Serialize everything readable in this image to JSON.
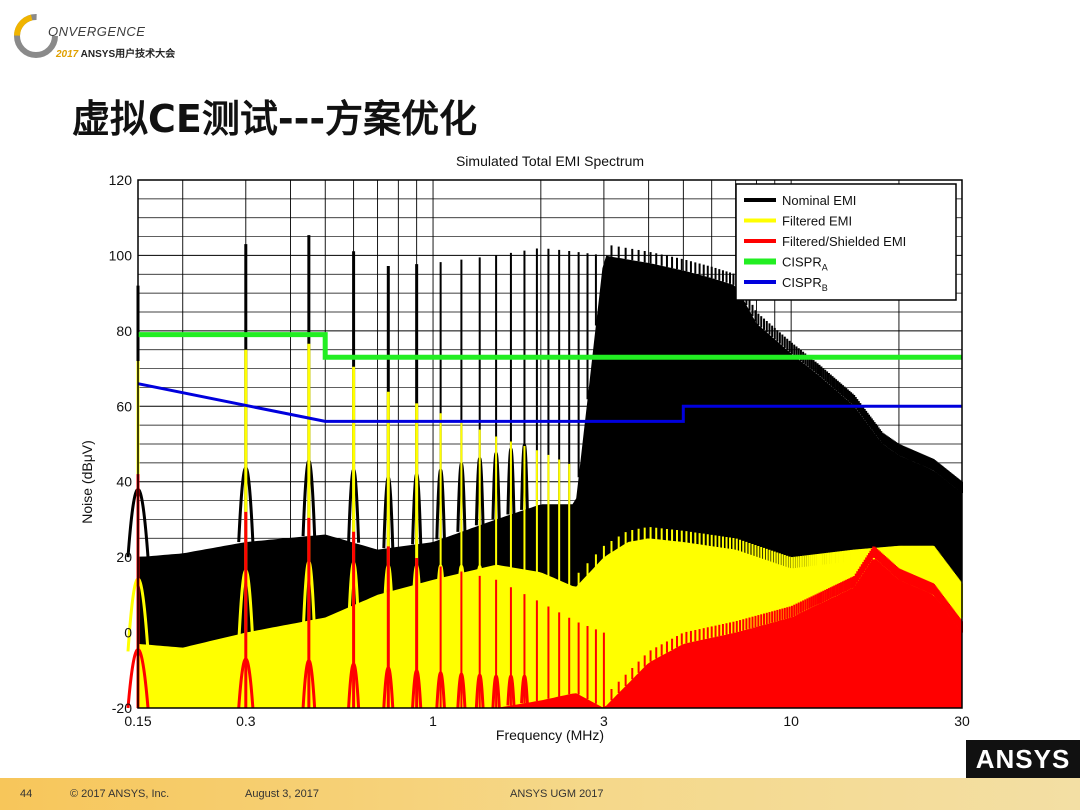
{
  "logo": {
    "text": "ONVERGENCE",
    "year": "2017",
    "subtitle": "ANSYS用户技术大会",
    "icon": "convergence-ring-icon"
  },
  "slide": {
    "title": "虚拟CE测试---方案优化"
  },
  "footer": {
    "page_number": "44",
    "copyright": "© 2017 ANSYS, Inc.",
    "date": "August 3, 2017",
    "event": "ANSYS UGM 2017",
    "brand": "ANSYS"
  },
  "chart_data": {
    "type": "line",
    "title": "Simulated Total EMI Spectrum",
    "xlabel": "Frequency (MHz)",
    "ylabel": "Noise (dBμV)",
    "xscale": "log",
    "xlim": [
      0.15,
      30
    ],
    "ylim": [
      -20,
      120
    ],
    "xticks": [
      0.15,
      0.3,
      1,
      3,
      10,
      30
    ],
    "xtick_labels": [
      "0.15",
      "0.3",
      "1",
      "3",
      "10",
      "30"
    ],
    "yticks": [
      -20,
      0,
      20,
      40,
      60,
      80,
      100,
      120
    ],
    "grid": true,
    "legend_position": "top-right",
    "colors": {
      "nominal": "#000000",
      "filtered": "#ffff00",
      "shielded": "#ff0000",
      "cispr_a": "#22ee22",
      "cispr_b": "#0000dd"
    },
    "series": [
      {
        "name": "Nominal EMI",
        "key": "nominal",
        "fundamental_mhz": 0.15,
        "floor": {
          "x": [
            0.15,
            0.2,
            0.3,
            0.5,
            0.7,
            1.0,
            1.5,
            2.0,
            2.5,
            3.0,
            4.0,
            5.0,
            6.0,
            7.0,
            8.0,
            10.0,
            12.0,
            15.0,
            18.0,
            20.0,
            25.0,
            30.0
          ],
          "y": [
            20,
            21,
            24,
            26,
            22,
            24,
            30,
            34,
            34,
            100,
            98,
            96,
            94,
            92,
            82,
            74,
            68,
            60,
            50,
            47,
            43,
            37
          ]
        },
        "peaks": {
          "x": [
            0.15,
            0.2,
            0.3,
            0.5,
            0.7,
            1.0,
            1.5,
            2.0,
            2.5,
            3.0
          ],
          "y": [
            92,
            98,
            103,
            106,
            97,
            98,
            100,
            102,
            101,
            100
          ]
        }
      },
      {
        "name": "Filtered EMI",
        "key": "filtered",
        "fundamental_mhz": 0.15,
        "floor": {
          "x": [
            0.15,
            0.2,
            0.3,
            0.5,
            0.7,
            1.0,
            1.5,
            2.0,
            2.5,
            3.0,
            3.5,
            4.0,
            5.0,
            7.0,
            10.0,
            15.0,
            20.0,
            25.0,
            30.0
          ],
          "y": [
            -5,
            -6,
            -3,
            0,
            2,
            4,
            6,
            5,
            0,
            -12,
            -4,
            0,
            3,
            6,
            8,
            12,
            13,
            12,
            4
          ],
          "upper_y": [
            -3,
            -4,
            0,
            4,
            10,
            14,
            18,
            16,
            12,
            20,
            24,
            25,
            24,
            22,
            17,
            19,
            20,
            20,
            10
          ]
        },
        "peaks": {
          "x": [
            0.15,
            0.2,
            0.3,
            0.5,
            0.7,
            1.0,
            1.5,
            2.0,
            2.5
          ],
          "y": [
            72,
            70,
            75,
            77,
            65,
            59,
            52,
            48,
            44
          ]
        }
      },
      {
        "name": "Filtered/Shielded EMI",
        "key": "shielded",
        "fundamental_mhz": 0.15,
        "floor": {
          "x": [
            0.15,
            0.2,
            0.3,
            0.5,
            0.7,
            1.0,
            1.5,
            2.0,
            2.5,
            3.0,
            4.0,
            5.0,
            7.0,
            10.0,
            15.0,
            17.0,
            20.0,
            25.0,
            30.0
          ],
          "y": [
            -20,
            -20,
            -20,
            -20,
            -20,
            -20,
            -20,
            -18,
            -16,
            -20,
            -8,
            -3,
            0,
            4,
            12,
            20,
            14,
            10,
            0
          ]
        },
        "peaks": {
          "x": [
            0.15,
            0.2,
            0.3,
            0.5,
            0.7,
            1.0,
            1.5,
            2.0,
            2.5,
            3.0
          ],
          "y": [
            42,
            34,
            32,
            30,
            24,
            18,
            14,
            8,
            3,
            0
          ]
        }
      },
      {
        "name": "CISPR_A",
        "key": "cispr_a",
        "x": [
          0.15,
          0.5,
          0.5,
          30
        ],
        "y": [
          79,
          79,
          73,
          73
        ]
      },
      {
        "name": "CISPR_B",
        "key": "cispr_b",
        "x": [
          0.15,
          0.5,
          5.0,
          5.0,
          30
        ],
        "y": [
          66,
          56,
          56,
          60,
          60
        ]
      }
    ]
  }
}
